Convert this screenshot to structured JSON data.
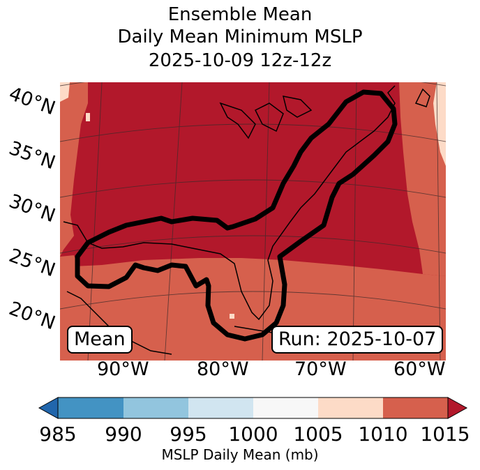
{
  "title": {
    "line1": "Ensemble Mean",
    "line2": "Daily Mean Minimum MSLP",
    "line3": "2025-10-09 12z-12z"
  },
  "map": {
    "lat_labels": [
      "40°N",
      "35°N",
      "30°N",
      "25°N",
      "20°N"
    ],
    "lon_labels": [
      "90°W",
      "80°W",
      "70°W",
      "60°W"
    ],
    "mean_badge": "Mean",
    "run_badge": "Run: 2025-10-07",
    "fill_colors": {
      "c1010_1015": "#b2182b",
      "c1005_1010": "#d6604d",
      "c1000_1005": "#fddbc7"
    }
  },
  "colorbar": {
    "ticks": [
      "985",
      "990",
      "995",
      "1000",
      "1005",
      "1010",
      "1015"
    ],
    "label": "MSLP Daily Mean (mb)",
    "colors": [
      "#2166ac",
      "#4393c3",
      "#92c5de",
      "#d1e5f0",
      "#f7f7f7",
      "#fddbc7",
      "#d6604d",
      "#b2182b"
    ]
  }
}
